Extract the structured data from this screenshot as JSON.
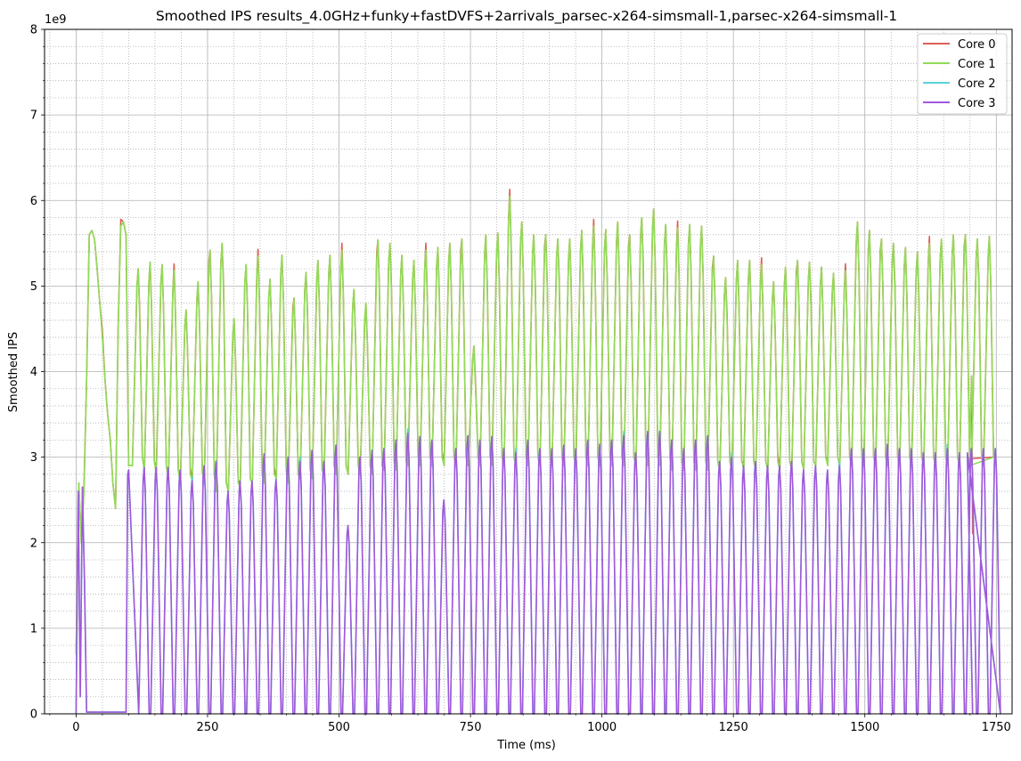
{
  "chart_data": {
    "type": "line",
    "title": "Smoothed IPS results_4.0GHz+funky+fastDVFS+2arrivals_parsec-x264-simsmall-1,parsec-x264-simsmall-1",
    "xlabel": "Time (ms)",
    "ylabel": "Smoothed IPS",
    "y_scale_label": "1e9",
    "xlim": [
      -60,
      1780
    ],
    "ylim": [
      0,
      8
    ],
    "x_ticks": [
      0,
      250,
      500,
      750,
      1000,
      1250,
      1500,
      1750
    ],
    "x_tick_labels": [
      "0",
      "250",
      "500",
      "750",
      "1000",
      "1250",
      "1500",
      "1750"
    ],
    "y_ticks": [
      0,
      1,
      2,
      3,
      4,
      5,
      6,
      7,
      8
    ],
    "y_tick_labels": [
      "0",
      "1",
      "2",
      "3",
      "4",
      "5",
      "6",
      "7",
      "8"
    ],
    "grid": "major solid, minor dotted",
    "legend_position": "top-right",
    "colors": {
      "core0": "#db5f57",
      "core1": "#91db57",
      "core2": "#57d3db",
      "core3": "#a157db"
    },
    "series": [
      {
        "name": "Core 0",
        "color": "#db5f57",
        "description": "nearly identical to Core 1 with slight deviations; ends at ~2.1e9"
      },
      {
        "name": "Core 1",
        "color": "#91db57",
        "description": "oscillates between ~2.6-3.0e9 troughs and ~5.0-6.0e9 peaks, period ~20 ms"
      },
      {
        "name": "Core 2",
        "color": "#57d3db",
        "description": "nearly identical to Core 3"
      },
      {
        "name": "Core 3",
        "color": "#a157db",
        "description": "idle near 0 from ~20 to ~95 ms, then oscillates between 0 and ~2.7-3.3e9"
      }
    ],
    "core1_initial": {
      "x": [
        0,
        5,
        10,
        15,
        20,
        25,
        30,
        35,
        40,
        45,
        50,
        55,
        60,
        65,
        70,
        75,
        80,
        85,
        90,
        95,
        100
      ],
      "y": [
        0.7,
        2.7,
        2.0,
        2.6,
        3.9,
        5.6,
        5.65,
        5.55,
        5.2,
        4.8,
        4.4,
        3.9,
        3.5,
        3.2,
        2.7,
        2.4,
        4.5,
        5.7,
        5.75,
        5.6,
        2.9
      ]
    },
    "core1_peaks": [
      5.2,
      5.28,
      5.25,
      5.18,
      4.72,
      5.05,
      5.42,
      5.5,
      4.62,
      5.25,
      5.35,
      5.08,
      5.36,
      4.86,
      5.16,
      5.3,
      5.36,
      5.42,
      4.96,
      4.8,
      5.54,
      5.5,
      5.36,
      5.3,
      5.42,
      5.45,
      5.5,
      5.55,
      4.3,
      5.6,
      5.62,
      6.05,
      5.75,
      5.6,
      5.6,
      5.55,
      5.55,
      5.65,
      5.7,
      5.66,
      5.75,
      5.6,
      5.8,
      5.9,
      5.72,
      5.68,
      5.72,
      5.7,
      5.35,
      5.1,
      5.3,
      5.3,
      5.25,
      5.05,
      5.22,
      5.3,
      5.28,
      5.22,
      5.15,
      5.18,
      5.75,
      5.65,
      5.55,
      5.5,
      5.45,
      5.4,
      5.5,
      5.55,
      5.6,
      5.6,
      5.55,
      5.58
    ],
    "core1_troughs": [
      2.9,
      2.85,
      2.8,
      2.75,
      2.7,
      2.72,
      2.7,
      2.6,
      2.6,
      2.65,
      2.7,
      2.7,
      2.75,
      2.7,
      2.75,
      2.75,
      2.8,
      2.8,
      2.8,
      2.8,
      2.8,
      2.85,
      2.85,
      2.9,
      2.9,
      2.9,
      2.9,
      2.9,
      2.9,
      2.9,
      2.9,
      2.9,
      2.9,
      2.9,
      2.9,
      2.9,
      2.9,
      2.9,
      2.9,
      2.9,
      2.9,
      2.9,
      2.9,
      2.9,
      2.9,
      2.85,
      2.85,
      2.85,
      2.85,
      2.85,
      2.85,
      2.85,
      2.85,
      2.85,
      2.85,
      2.85,
      2.85,
      2.9,
      2.9,
      2.9,
      2.9,
      2.9,
      2.9,
      2.9,
      2.9,
      2.9,
      2.9,
      2.9,
      2.9,
      2.9,
      2.9,
      2.9
    ],
    "core3_initial": {
      "x": [
        0,
        4,
        8,
        12,
        16,
        20,
        95,
        98,
        100
      ],
      "y": [
        0,
        2.6,
        0.2,
        2.65,
        1.5,
        0.02,
        0.02,
        2.8,
        2.85
      ]
    },
    "core3_peaks": [
      2.88,
      2.88,
      2.88,
      2.85,
      2.72,
      2.9,
      2.95,
      2.6,
      2.72,
      2.72,
      3.04,
      2.74,
      3.0,
      2.95,
      3.08,
      2.95,
      3.14,
      2.2,
      3.0,
      3.08,
      3.1,
      3.2,
      3.28,
      3.24,
      3.2,
      2.5,
      3.1,
      3.25,
      3.2,
      3.24,
      3.1,
      3.05,
      3.2,
      3.1,
      3.1,
      3.14,
      3.1,
      3.2,
      3.15,
      3.2,
      3.25,
      3.05,
      3.3,
      3.3,
      3.2,
      3.1,
      3.2,
      3.25,
      2.95,
      3.0,
      2.9,
      2.95,
      2.9,
      2.9,
      2.95,
      2.85,
      2.9,
      2.85,
      2.9,
      3.1,
      3.1,
      3.1,
      3.15,
      3.1,
      3.1,
      3.05,
      3.05,
      3.1,
      3.05,
      3.1,
      3.1,
      3.1
    ],
    "period_ms": 22.8,
    "first_cycle_ms": 118,
    "end_ms": 1705,
    "end_values": {
      "core0": 2.1,
      "core1": 3.95,
      "core3": 0.0
    }
  },
  "legend": {
    "items": [
      {
        "label": "Core 0",
        "color": "#db5f57"
      },
      {
        "label": "Core 1",
        "color": "#91db57"
      },
      {
        "label": "Core 2",
        "color": "#57d3db"
      },
      {
        "label": "Core 3",
        "color": "#a157db"
      }
    ]
  }
}
